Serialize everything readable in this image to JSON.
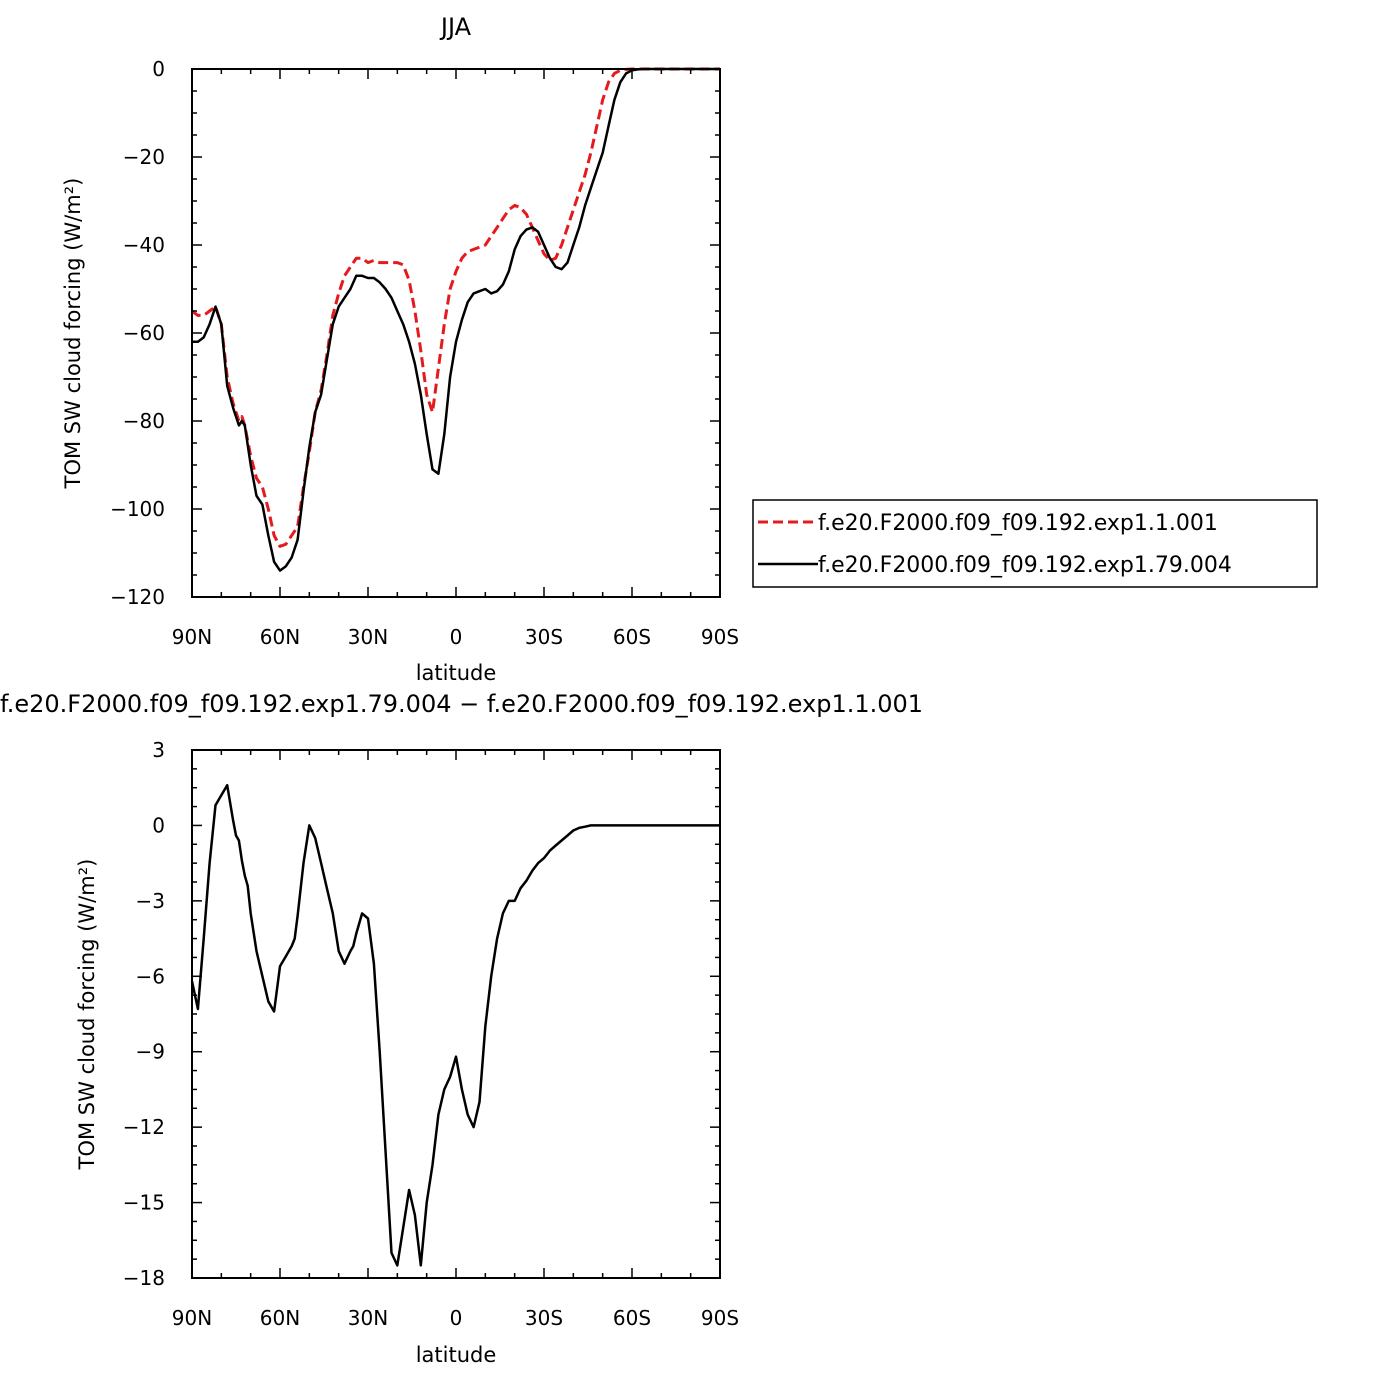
{
  "chart_data": [
    {
      "type": "line",
      "title": "JJA",
      "xlabel": "latitude",
      "ylabel": "TOM SW cloud forcing (W/m²)",
      "xlim": [
        90,
        -90
      ],
      "ylim": [
        -120,
        0
      ],
      "x_ticks": [
        90,
        60,
        30,
        0,
        -30,
        -60,
        -90
      ],
      "x_tick_labels": [
        "90N",
        "60N",
        "30N",
        "0",
        "30S",
        "60S",
        "90S"
      ],
      "y_ticks": [
        0,
        -20,
        -40,
        -60,
        -80,
        -100,
        -120
      ],
      "y_tick_labels": [
        "0",
        "−20",
        "−40",
        "−60",
        "−80",
        "−100",
        "−120"
      ],
      "grid": false,
      "legend_placement": "right",
      "series": [
        {
          "name": "f.e20.F2000.f09_f09.192.exp1.1.001",
          "color": "#e41a1c",
          "dash": "dashed",
          "x": [
            90,
            88,
            86,
            84,
            82,
            80,
            78,
            76,
            74,
            73,
            72,
            70,
            68,
            66,
            64,
            62,
            60,
            58,
            56,
            54,
            52,
            50,
            48,
            46,
            44,
            42,
            40,
            38,
            36,
            34,
            32,
            30,
            28,
            26,
            24,
            22,
            20,
            18,
            16,
            14,
            12,
            10,
            8,
            6,
            4,
            2,
            0,
            -2,
            -4,
            -6,
            -8,
            -10,
            -12,
            -14,
            -16,
            -18,
            -20,
            -22,
            -24,
            -26,
            -28,
            -30,
            -32,
            -34,
            -36,
            -38,
            -40,
            -42,
            -44,
            -46,
            -48,
            -50,
            -52,
            -54,
            -56,
            -58,
            -60,
            -62,
            -64,
            -66,
            -68,
            -70,
            -75,
            -80,
            -85,
            -90
          ],
          "y": [
            -55,
            -56,
            -56,
            -55,
            -54,
            -58,
            -70,
            -76,
            -80,
            -79,
            -81,
            -88,
            -93,
            -95,
            -100,
            -106,
            -108.5,
            -108,
            -106,
            -104,
            -95,
            -87,
            -78,
            -73,
            -65,
            -56,
            -51,
            -47,
            -45,
            -43,
            -43,
            -44,
            -43.5,
            -44,
            -44,
            -44,
            -44,
            -44.5,
            -48,
            -55,
            -64,
            -74,
            -78,
            -68,
            -58,
            -50,
            -46,
            -43,
            -41.5,
            -41,
            -40.5,
            -40,
            -38,
            -36,
            -34,
            -32,
            -31,
            -31.5,
            -33,
            -36,
            -39,
            -42,
            -43.5,
            -43,
            -40,
            -36,
            -32,
            -28,
            -24,
            -19,
            -13,
            -7,
            -3,
            -1,
            -0.3,
            -0.1,
            0,
            0,
            0,
            0,
            0,
            0,
            0,
            0,
            0,
            0
          ]
        },
        {
          "name": "f.e20.F2000.f09_f09.192.exp1.79.004",
          "color": "#000000",
          "dash": "solid",
          "x": [
            90,
            88,
            86,
            84,
            82,
            80,
            78,
            76,
            74,
            73,
            72,
            70,
            68,
            66,
            64,
            62,
            60,
            58,
            56,
            54,
            52,
            50,
            48,
            46,
            44,
            42,
            40,
            38,
            36,
            34,
            32,
            30,
            28,
            26,
            24,
            22,
            20,
            18,
            16,
            14,
            12,
            10,
            8,
            6,
            4,
            2,
            0,
            -2,
            -4,
            -6,
            -8,
            -10,
            -12,
            -14,
            -16,
            -18,
            -20,
            -22,
            -24,
            -26,
            -28,
            -30,
            -32,
            -34,
            -36,
            -38,
            -40,
            -42,
            -44,
            -46,
            -48,
            -50,
            -52,
            -54,
            -56,
            -58,
            -60,
            -62,
            -64,
            -66,
            -68,
            -70,
            -75,
            -80,
            -85,
            -90
          ],
          "y": [
            -62,
            -62,
            -61,
            -58,
            -54,
            -58,
            -72,
            -77,
            -81,
            -80,
            -81,
            -90,
            -97,
            -99,
            -106,
            -112,
            -114,
            -113,
            -111,
            -107,
            -96,
            -86,
            -78,
            -74,
            -66,
            -58,
            -54,
            -52,
            -50,
            -47,
            -47,
            -47.5,
            -47.5,
            -48.5,
            -50,
            -52,
            -55,
            -58,
            -62,
            -67,
            -74,
            -83,
            -91,
            -92,
            -83,
            -70,
            -62,
            -57,
            -53,
            -51,
            -50.5,
            -50,
            -51,
            -50.5,
            -49,
            -46,
            -41,
            -38,
            -36.5,
            -36,
            -37,
            -40,
            -43,
            -45,
            -45.5,
            -44,
            -40,
            -36,
            -31,
            -27,
            -23,
            -19,
            -13,
            -7,
            -3,
            -1,
            -0.3,
            -0.1,
            0,
            0,
            0,
            0,
            0,
            0,
            0,
            0
          ]
        }
      ]
    },
    {
      "type": "line",
      "title": "f.e20.F2000.f09_f09.192.exp1.79.004 − f.e20.F2000.f09_f09.192.exp1.1.001",
      "xlabel": "latitude",
      "ylabel": "TOM SW cloud forcing (W/m²)",
      "xlim": [
        90,
        -90
      ],
      "ylim": [
        -18,
        3
      ],
      "x_ticks": [
        90,
        60,
        30,
        0,
        -30,
        -60,
        -90
      ],
      "x_tick_labels": [
        "90N",
        "60N",
        "30N",
        "0",
        "30S",
        "60S",
        "90S"
      ],
      "y_ticks": [
        3,
        0,
        -3,
        -6,
        -9,
        -12,
        -15,
        -18
      ],
      "y_tick_labels": [
        "3",
        "0",
        "−3",
        "−6",
        "−9",
        "−12",
        "−15",
        "−18"
      ],
      "grid": false,
      "series": [
        {
          "color": "#000000",
          "dash": "solid",
          "x": [
            90,
            88,
            86,
            84,
            82,
            80,
            78,
            76,
            75,
            74,
            73,
            72,
            71,
            70,
            68,
            66,
            64,
            63,
            62,
            60,
            58,
            56,
            55,
            54,
            52,
            50,
            48,
            46,
            44,
            42,
            40,
            38,
            36,
            35,
            34,
            32,
            30,
            28,
            26,
            24,
            22,
            20,
            18,
            16,
            14,
            12,
            10,
            8,
            6,
            4,
            2,
            0,
            -2,
            -4,
            -6,
            -8,
            -10,
            -12,
            -14,
            -16,
            -18,
            -20,
            -22,
            -24,
            -26,
            -28,
            -30,
            -32,
            -34,
            -36,
            -38,
            -40,
            -42,
            -44,
            -46,
            -48,
            -50,
            -52,
            -54,
            -56,
            -58,
            -60,
            -62,
            -65,
            -70,
            -75,
            -80,
            -85,
            -90
          ],
          "y": [
            -6.2,
            -7.3,
            -4.5,
            -1.5,
            0.8,
            1.2,
            1.6,
            0.2,
            -0.4,
            -0.6,
            -1.4,
            -2,
            -2.4,
            -3.5,
            -5,
            -6,
            -7,
            -7.2,
            -7.4,
            -5.6,
            -5.2,
            -4.8,
            -4.5,
            -3.6,
            -1.5,
            0,
            -0.5,
            -1.5,
            -2.5,
            -3.5,
            -5,
            -5.5,
            -5,
            -4.8,
            -4.3,
            -3.5,
            -3.7,
            -5.5,
            -9,
            -13,
            -17,
            -17.5,
            -16,
            -14.5,
            -15.5,
            -17.5,
            -15,
            -13.5,
            -11.5,
            -10.5,
            -10,
            -9.2,
            -10.5,
            -11.5,
            -12,
            -11,
            -8,
            -6,
            -4.5,
            -3.5,
            -3,
            -3,
            -2.5,
            -2.2,
            -1.8,
            -1.5,
            -1.3,
            -1,
            -0.8,
            -0.6,
            -0.4,
            -0.2,
            -0.1,
            -0.05,
            0,
            0,
            0,
            0,
            0,
            0,
            0,
            0,
            0,
            0,
            0,
            0,
            0,
            0,
            0
          ]
        }
      ]
    }
  ]
}
